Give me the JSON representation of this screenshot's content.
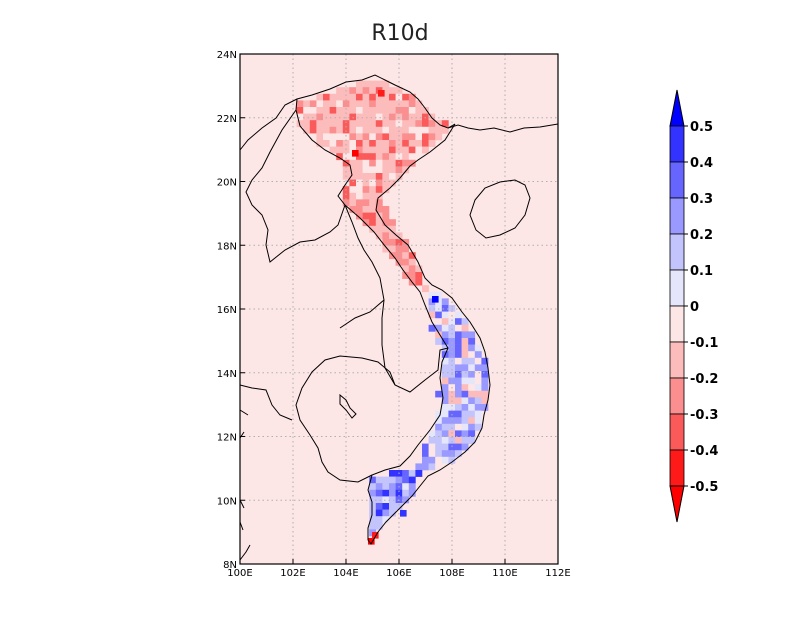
{
  "title": "R10d",
  "map": {
    "lon_range": [
      100,
      112
    ],
    "lat_range": [
      8,
      24
    ],
    "x_ticks": [
      "100E",
      "102E",
      "104E",
      "106E",
      "108E",
      "110E",
      "112E"
    ],
    "y_ticks": [
      "8N",
      "10N",
      "12N",
      "14N",
      "16N",
      "18N",
      "20N",
      "22N",
      "24N"
    ],
    "grid": "dotted",
    "background_color": "#fde6e6"
  },
  "colorbar": {
    "labels": [
      "0.5",
      "0.4",
      "0.3",
      "0.2",
      "0.1",
      "0",
      "-0.1",
      "-0.2",
      "-0.3",
      "-0.4",
      "-0.5"
    ],
    "colors": [
      "#0000ff",
      "#3333ff",
      "#6666ff",
      "#9999ff",
      "#c4c4fc",
      "#e6e6fa",
      "#fde6e6",
      "#fcbcbc",
      "#fb8e8e",
      "#fb5a5a",
      "#ff1a1a",
      "#ff0000"
    ]
  }
}
